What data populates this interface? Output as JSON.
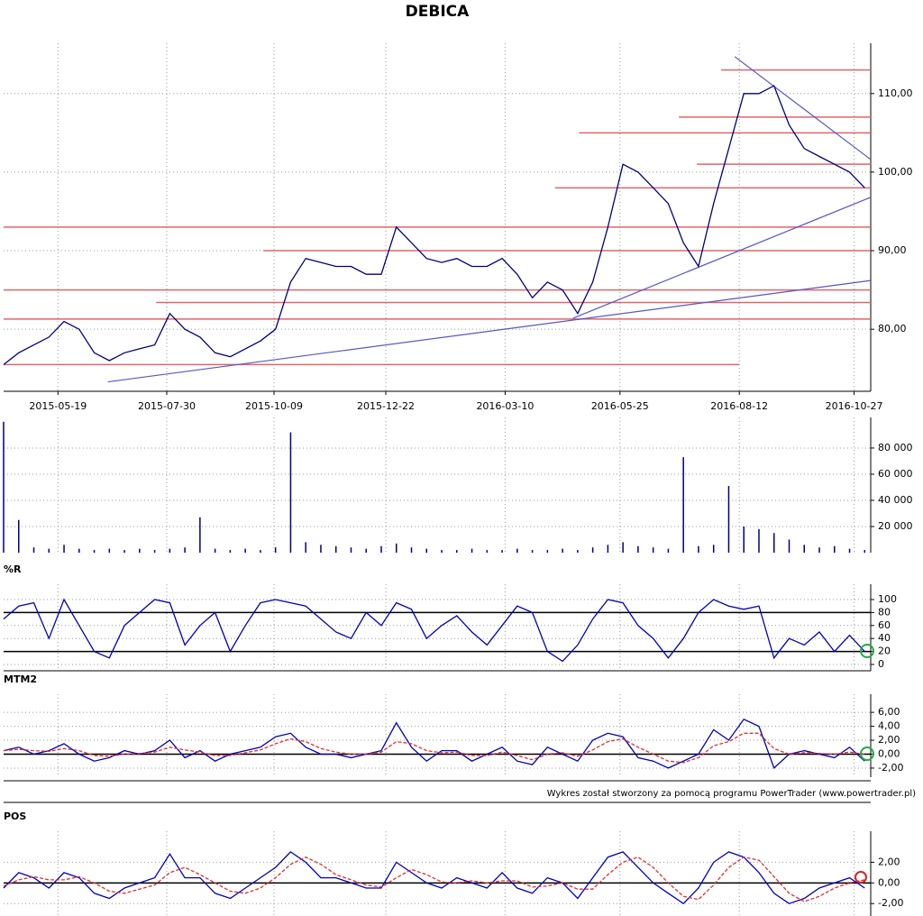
{
  "title": "DEBICA",
  "footer": "Wykres został stworzony za pomocą programu PowerTrader (www.powertrader.pl)",
  "chart_data": [
    {
      "type": "line",
      "color": "#000080",
      "x": [
        "2015-04-13",
        "2015-04-23",
        "2015-05-03",
        "2015-05-13",
        "2015-05-23",
        "2015-06-02",
        "2015-06-12",
        "2015-06-22",
        "2015-07-02",
        "2015-07-12",
        "2015-07-22",
        "2015-08-01",
        "2015-08-11",
        "2015-08-21",
        "2015-08-31",
        "2015-09-10",
        "2015-09-20",
        "2015-09-30",
        "2015-10-10",
        "2015-10-20",
        "2015-10-30",
        "2015-11-09",
        "2015-11-19",
        "2015-11-29",
        "2015-12-09",
        "2015-12-19",
        "2015-12-29",
        "2016-01-08",
        "2016-01-18",
        "2016-01-28",
        "2016-02-07",
        "2016-02-17",
        "2016-02-27",
        "2016-03-08",
        "2016-03-18",
        "2016-03-28",
        "2016-04-07",
        "2016-04-17",
        "2016-04-27",
        "2016-05-07",
        "2016-05-17",
        "2016-05-27",
        "2016-06-06",
        "2016-06-16",
        "2016-06-26",
        "2016-07-06",
        "2016-07-16",
        "2016-07-26",
        "2016-08-05",
        "2016-08-15",
        "2016-08-25",
        "2016-09-04",
        "2016-09-14",
        "2016-09-24",
        "2016-10-04",
        "2016-10-14",
        "2016-10-24",
        "2016-11-03"
      ],
      "values": [
        75.5,
        77,
        78,
        79,
        81,
        80,
        77,
        76,
        77,
        77.5,
        78,
        82,
        80,
        79,
        77,
        76.5,
        77.5,
        78.5,
        80,
        86,
        89,
        88.5,
        88,
        88,
        87,
        87,
        93,
        91,
        89,
        88.5,
        89,
        88,
        88,
        89,
        87,
        84,
        86,
        85,
        82,
        86,
        93,
        101,
        100,
        98,
        96,
        91,
        88,
        96,
        103,
        110,
        110,
        111,
        106,
        103,
        102,
        101,
        100,
        98
      ],
      "xlim": [
        "2015-04-13",
        "2016-11-07"
      ],
      "xticks": [
        "2015-05-19",
        "2015-07-30",
        "2015-10-09",
        "2015-12-22",
        "2016-03-10",
        "2016-05-25",
        "2016-08-12",
        "2016-10-27"
      ],
      "ylim": [
        72.1,
        116.4
      ],
      "yticks": [
        {
          "value": 80,
          "label": "80,00"
        },
        {
          "value": 90,
          "label": "90,00"
        },
        {
          "value": 100,
          "label": "100,00"
        },
        {
          "value": 110,
          "label": "110,00"
        }
      ],
      "grid": true,
      "hlines": [
        {
          "value": 113,
          "from": "2016-07-31"
        },
        {
          "value": 107,
          "from": "2016-07-03"
        },
        {
          "value": 105,
          "from": "2016-04-28"
        },
        {
          "value": 101,
          "from": "2016-07-15"
        },
        {
          "value": 98,
          "from": "2016-04-12"
        },
        {
          "value": 93
        },
        {
          "value": 90,
          "from": "2015-10-02"
        },
        {
          "value": 85
        },
        {
          "value": 83.4,
          "from": "2015-07-23"
        },
        {
          "value": 81.3
        },
        {
          "value": 75.5,
          "to": "2016-08-12"
        }
      ],
      "hline_color": "#e06666",
      "trendlines": [
        {
          "x": [
            "2015-06-21",
            "2016-11-07"
          ],
          "values": [
            73.3,
            86.2
          ]
        },
        {
          "x": [
            "2016-04-24",
            "2016-11-07"
          ],
          "values": [
            81.4,
            96.8
          ]
        },
        {
          "x": [
            "2016-08-09",
            "2016-11-07"
          ],
          "values": [
            114.7,
            101.6
          ]
        }
      ],
      "trend_color": "#5555cc"
    },
    {
      "type": "bar",
      "color": "#000080",
      "x": [
        "2015-04-13",
        "2015-04-23",
        "2015-05-03",
        "2015-05-13",
        "2015-05-23",
        "2015-06-02",
        "2015-06-12",
        "2015-06-22",
        "2015-07-02",
        "2015-07-12",
        "2015-07-22",
        "2015-08-01",
        "2015-08-11",
        "2015-08-21",
        "2015-08-31",
        "2015-09-10",
        "2015-09-20",
        "2015-09-30",
        "2015-10-10",
        "2015-10-20",
        "2015-10-30",
        "2015-11-09",
        "2015-11-19",
        "2015-11-29",
        "2015-12-09",
        "2015-12-19",
        "2015-12-29",
        "2016-01-08",
        "2016-01-18",
        "2016-01-28",
        "2016-02-07",
        "2016-02-17",
        "2016-02-27",
        "2016-03-08",
        "2016-03-18",
        "2016-03-28",
        "2016-04-07",
        "2016-04-17",
        "2016-04-27",
        "2016-05-07",
        "2016-05-17",
        "2016-05-27",
        "2016-06-06",
        "2016-06-16",
        "2016-06-26",
        "2016-07-06",
        "2016-07-16",
        "2016-07-26",
        "2016-08-05",
        "2016-08-15",
        "2016-08-25",
        "2016-09-04",
        "2016-09-14",
        "2016-09-24",
        "2016-10-04",
        "2016-10-14",
        "2016-10-24",
        "2016-11-03"
      ],
      "values": [
        100000,
        25000,
        4000,
        3000,
        6000,
        3000,
        2000,
        3000,
        2000,
        3000,
        2000,
        3000,
        4000,
        27000,
        3000,
        2000,
        3000,
        2000,
        4000,
        92000,
        8000,
        6000,
        5000,
        4000,
        3000,
        5000,
        7000,
        4000,
        3000,
        2000,
        2000,
        3000,
        2000,
        2000,
        3000,
        2000,
        2000,
        3000,
        2000,
        4000,
        6000,
        8000,
        5000,
        4000,
        3000,
        73000,
        5000,
        6000,
        51000,
        20000,
        18000,
        15000,
        10000,
        6000,
        4000,
        5000,
        3000,
        2000
      ],
      "xlim": [
        "2015-04-13",
        "2016-11-07"
      ],
      "ylim": [
        0,
        103400
      ],
      "yticks": [
        {
          "value": 20000,
          "label": "20 000"
        },
        {
          "value": 40000,
          "label": "40 000"
        },
        {
          "value": 60000,
          "label": "60 000"
        },
        {
          "value": 80000,
          "label": "80 000"
        }
      ],
      "grid": true
    },
    {
      "type": "line",
      "title": "%R",
      "color": "#0000c0",
      "x": [
        "2015-04-13",
        "2015-04-23",
        "2015-05-03",
        "2015-05-13",
        "2015-05-23",
        "2015-06-02",
        "2015-06-12",
        "2015-06-22",
        "2015-07-02",
        "2015-07-12",
        "2015-07-22",
        "2015-08-01",
        "2015-08-11",
        "2015-08-21",
        "2015-08-31",
        "2015-09-10",
        "2015-09-20",
        "2015-09-30",
        "2015-10-10",
        "2015-10-20",
        "2015-10-30",
        "2015-11-09",
        "2015-11-19",
        "2015-11-29",
        "2015-12-09",
        "2015-12-19",
        "2015-12-29",
        "2016-01-08",
        "2016-01-18",
        "2016-01-28",
        "2016-02-07",
        "2016-02-17",
        "2016-02-27",
        "2016-03-08",
        "2016-03-18",
        "2016-03-28",
        "2016-04-07",
        "2016-04-17",
        "2016-04-27",
        "2016-05-07",
        "2016-05-17",
        "2016-05-27",
        "2016-06-06",
        "2016-06-16",
        "2016-06-26",
        "2016-07-06",
        "2016-07-16",
        "2016-07-26",
        "2016-08-05",
        "2016-08-15",
        "2016-08-25",
        "2016-09-04",
        "2016-09-14",
        "2016-09-24",
        "2016-10-04",
        "2016-10-14",
        "2016-10-24",
        "2016-11-03"
      ],
      "values": [
        70,
        90,
        95,
        40,
        100,
        60,
        20,
        10,
        60,
        80,
        100,
        95,
        30,
        60,
        80,
        20,
        60,
        95,
        100,
        95,
        90,
        70,
        50,
        40,
        80,
        60,
        95,
        85,
        40,
        60,
        75,
        50,
        30,
        60,
        90,
        80,
        20,
        5,
        30,
        70,
        100,
        95,
        60,
        40,
        10,
        40,
        80,
        100,
        90,
        85,
        90,
        10,
        40,
        30,
        50,
        20,
        45,
        20
      ],
      "xlim": [
        "2015-04-13",
        "2016-11-07"
      ],
      "ylim": [
        -9.7,
        123.6
      ],
      "yticks": [
        0,
        20,
        40,
        60,
        80,
        100
      ],
      "hlines": [
        {
          "value": 80
        },
        {
          "value": 20
        }
      ],
      "hline_color": "#000000",
      "grid": true
    },
    {
      "type": "line",
      "title": "MTM2",
      "x": [
        "2015-04-13",
        "2015-04-23",
        "2015-05-03",
        "2015-05-13",
        "2015-05-23",
        "2015-06-02",
        "2015-06-12",
        "2015-06-22",
        "2015-07-02",
        "2015-07-12",
        "2015-07-22",
        "2015-08-01",
        "2015-08-11",
        "2015-08-21",
        "2015-08-31",
        "2015-09-10",
        "2015-09-20",
        "2015-09-30",
        "2015-10-10",
        "2015-10-20",
        "2015-10-30",
        "2015-11-09",
        "2015-11-19",
        "2015-11-29",
        "2015-12-09",
        "2015-12-19",
        "2015-12-29",
        "2016-01-08",
        "2016-01-18",
        "2016-01-28",
        "2016-02-07",
        "2016-02-17",
        "2016-02-27",
        "2016-03-08",
        "2016-03-18",
        "2016-03-28",
        "2016-04-07",
        "2016-04-17",
        "2016-04-27",
        "2016-05-07",
        "2016-05-17",
        "2016-05-27",
        "2016-06-06",
        "2016-06-16",
        "2016-06-26",
        "2016-07-06",
        "2016-07-16",
        "2016-07-26",
        "2016-08-05",
        "2016-08-15",
        "2016-08-25",
        "2016-09-04",
        "2016-09-14",
        "2016-09-24",
        "2016-10-04",
        "2016-10-14",
        "2016-10-24",
        "2016-11-03"
      ],
      "series": [
        {
          "color": "#0000c0",
          "values": [
            0.5,
            1,
            0,
            0.5,
            1.5,
            0,
            -1,
            -0.5,
            0.5,
            0,
            0.5,
            2,
            -0.5,
            0.5,
            -1,
            0,
            0.5,
            1,
            2.5,
            3,
            1,
            0,
            0,
            -0.5,
            0,
            0.5,
            4.5,
            1,
            -1,
            0.5,
            0.5,
            -1,
            0,
            1,
            -1,
            -1.5,
            1,
            0,
            -1,
            2,
            3,
            2.5,
            -0.5,
            -1,
            -2,
            -1,
            0,
            3.5,
            2,
            5,
            4,
            -2,
            0,
            0.5,
            0,
            -0.5,
            1,
            -1
          ]
        },
        {
          "color": "#e03030",
          "style": "dashed",
          "values": [
            0.5,
            0.7,
            0.5,
            0.4,
            0.8,
            0.5,
            -0.2,
            -0.3,
            0,
            0.1,
            0.3,
            1,
            0.6,
            0.3,
            -0.2,
            -0.2,
            0.2,
            0.6,
            1.5,
            2.2,
            1.8,
            0.8,
            0.3,
            0,
            0,
            0.3,
            1.8,
            1.5,
            0.5,
            0.2,
            0.3,
            -0.2,
            -0.2,
            0.3,
            -0.2,
            -0.8,
            0,
            0.2,
            -0.3,
            0.6,
            1.8,
            2.2,
            1,
            0,
            -1,
            -1.2,
            -0.5,
            1.2,
            1.8,
            3,
            3,
            0.8,
            0,
            0.2,
            0.1,
            0,
            0.3,
            0
          ]
        }
      ],
      "xlim": [
        "2015-04-13",
        "2016-11-07"
      ],
      "ylim": [
        -3.3,
        8.6
      ],
      "yticks": [
        {
          "value": -2,
          "label": "-2,00"
        },
        {
          "value": 0,
          "label": "0,00"
        },
        {
          "value": 2,
          "label": "2,00"
        },
        {
          "value": 4,
          "label": "4,00"
        },
        {
          "value": 6,
          "label": "6,00"
        }
      ],
      "hlines": [
        {
          "value": 0
        }
      ],
      "hline_color": "#000000",
      "grid": true
    },
    {
      "type": "line",
      "title": "POS",
      "x": [
        "2015-04-13",
        "2015-04-23",
        "2015-05-03",
        "2015-05-13",
        "2015-05-23",
        "2015-06-02",
        "2015-06-12",
        "2015-06-22",
        "2015-07-02",
        "2015-07-12",
        "2015-07-22",
        "2015-08-01",
        "2015-08-11",
        "2015-08-21",
        "2015-08-31",
        "2015-09-10",
        "2015-09-20",
        "2015-09-30",
        "2015-10-10",
        "2015-10-20",
        "2015-10-30",
        "2015-11-09",
        "2015-11-19",
        "2015-11-29",
        "2015-12-09",
        "2015-12-19",
        "2015-12-29",
        "2016-01-08",
        "2016-01-18",
        "2016-01-28",
        "2016-02-07",
        "2016-02-17",
        "2016-02-27",
        "2016-03-08",
        "2016-03-18",
        "2016-03-28",
        "2016-04-07",
        "2016-04-17",
        "2016-04-27",
        "2016-05-07",
        "2016-05-17",
        "2016-05-27",
        "2016-06-06",
        "2016-06-16",
        "2016-06-26",
        "2016-07-06",
        "2016-07-16",
        "2016-07-26",
        "2016-08-05",
        "2016-08-15",
        "2016-08-25",
        "2016-09-04",
        "2016-09-14",
        "2016-09-24",
        "2016-10-04",
        "2016-10-14",
        "2016-10-24",
        "2016-11-03"
      ],
      "series": [
        {
          "color": "#0000c0",
          "values": [
            -0.5,
            1,
            0.5,
            -0.5,
            1,
            0.5,
            -1,
            -1.5,
            -0.5,
            0,
            0.5,
            2.8,
            0.5,
            0.5,
            -1,
            -1.5,
            -0.5,
            0.5,
            1.5,
            3,
            2,
            0.5,
            0.5,
            0,
            -0.5,
            -0.5,
            2,
            1,
            0,
            -0.5,
            0.5,
            0,
            -0.5,
            1,
            -0.5,
            -1,
            0.5,
            0,
            -1.5,
            0.5,
            2.5,
            3,
            1.5,
            0,
            -1,
            -2,
            -0.5,
            2,
            3,
            2.5,
            1,
            -1,
            -2,
            -1.5,
            -0.5,
            0,
            0.5,
            -0.5
          ]
        },
        {
          "color": "#e03030",
          "style": "dashed",
          "values": [
            -0.3,
            0.3,
            0.6,
            0.3,
            0.3,
            0.6,
            0,
            -0.8,
            -1,
            -0.6,
            -0.2,
            1,
            1.5,
            0.8,
            0,
            -0.8,
            -1,
            -0.5,
            0.5,
            1.8,
            2.5,
            1.8,
            0.8,
            0.3,
            -0.2,
            -0.4,
            0.5,
            1.3,
            0.8,
            0.1,
            0,
            0.2,
            0,
            0.2,
            0.2,
            -0.4,
            -0.3,
            0,
            -0.6,
            -0.6,
            0.8,
            2,
            2.5,
            1.5,
            0,
            -1.3,
            -1.6,
            -0.2,
            1.5,
            2.5,
            2.2,
            0.6,
            -1,
            -1.8,
            -1.3,
            -0.5,
            0,
            0.3
          ]
        }
      ],
      "xlim": [
        "2015-04-13",
        "2016-11-07"
      ],
      "ylim": [
        -3.2,
        5
      ],
      "yticks": [
        {
          "value": -2,
          "label": "-2,00"
        },
        {
          "value": 0,
          "label": "0,00"
        },
        {
          "value": 2,
          "label": "2,00"
        }
      ],
      "hlines": [
        {
          "value": 0
        }
      ],
      "hline_color": "#000000",
      "grid": true
    }
  ]
}
